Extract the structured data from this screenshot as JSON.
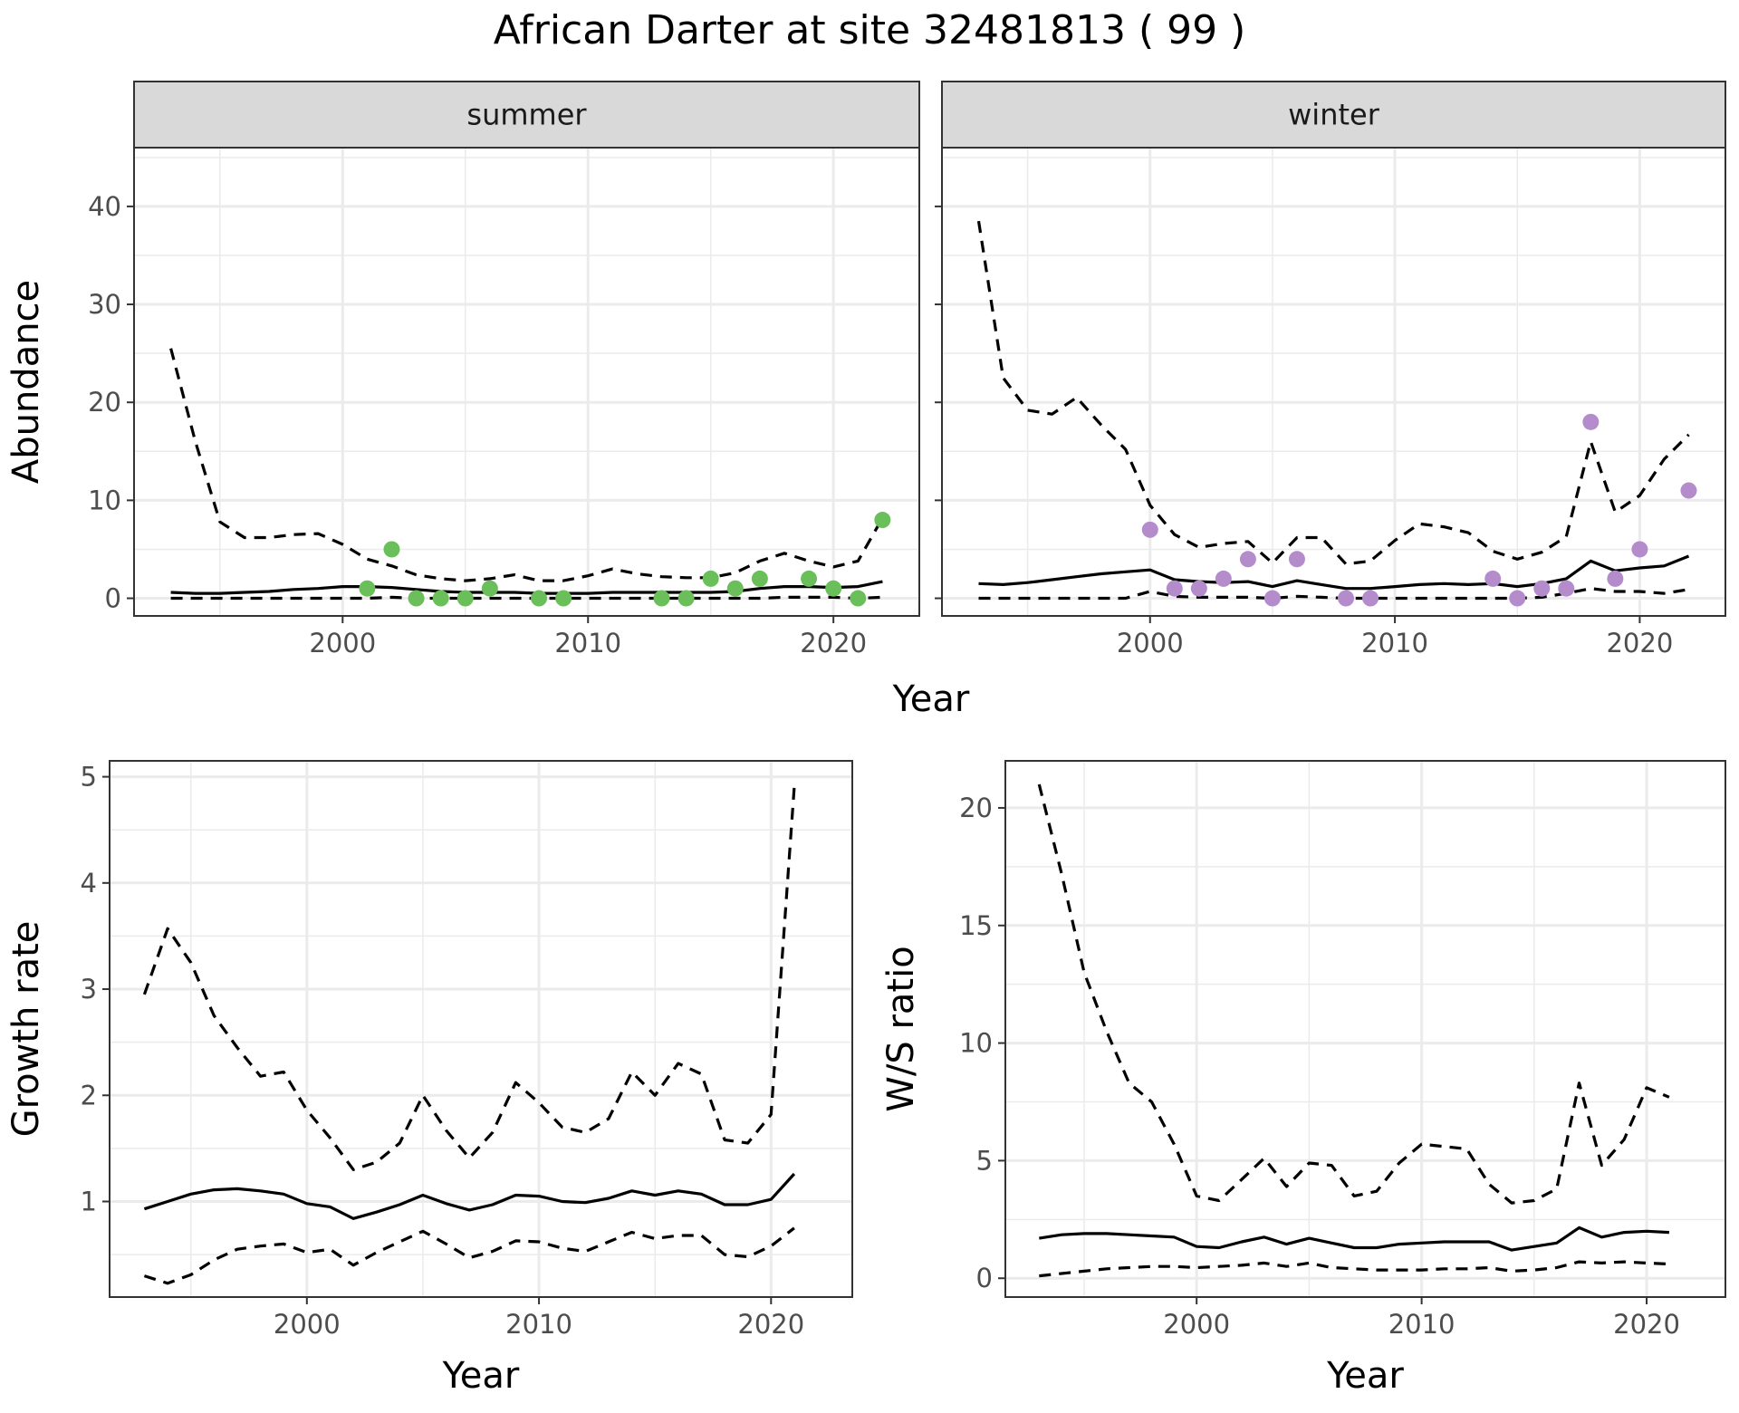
{
  "figure": {
    "title": "African Darter at site 32481813 ( 99 )"
  },
  "colors": {
    "summer_points": "#6abf5a",
    "winter_points": "#b48ccc",
    "line": "#000000",
    "grid": "#ebebeb",
    "strip_bg": "#d9d9d9"
  },
  "chart_data": [
    {
      "type": "line",
      "facet": "summer",
      "xlabel": "Year",
      "ylabel": "Abundance",
      "xlim": [
        1991.5,
        2023.5
      ],
      "ylim": [
        -1.8,
        46
      ],
      "xticks": [
        2000,
        2010,
        2020
      ],
      "yticks": [
        0,
        10,
        20,
        30,
        40
      ],
      "series": [
        {
          "role": "median",
          "style": "solid",
          "x": [
            1993,
            1994,
            1995,
            1996,
            1997,
            1998,
            1999,
            2000,
            2001,
            2002,
            2003,
            2004,
            2005,
            2006,
            2007,
            2008,
            2009,
            2010,
            2011,
            2012,
            2013,
            2014,
            2015,
            2016,
            2017,
            2018,
            2019,
            2020,
            2021,
            2022
          ],
          "y": [
            0.6,
            0.5,
            0.5,
            0.6,
            0.7,
            0.9,
            1.0,
            1.2,
            1.2,
            1.1,
            0.9,
            0.7,
            0.6,
            0.6,
            0.6,
            0.5,
            0.5,
            0.5,
            0.6,
            0.6,
            0.6,
            0.6,
            0.6,
            0.7,
            1.0,
            1.2,
            1.2,
            1.1,
            1.2,
            1.7
          ]
        },
        {
          "role": "upper",
          "style": "dashed",
          "x": [
            1993,
            1994,
            1995,
            1996,
            1997,
            1998,
            1999,
            2000,
            2001,
            2002,
            2003,
            2004,
            2005,
            2006,
            2007,
            2008,
            2009,
            2010,
            2011,
            2012,
            2013,
            2014,
            2015,
            2016,
            2017,
            2018,
            2019,
            2020,
            2021,
            2022
          ],
          "y": [
            25.5,
            16,
            7.8,
            6.2,
            6.2,
            6.5,
            6.6,
            5.5,
            4.0,
            3.3,
            2.4,
            2.0,
            1.8,
            2.0,
            2.4,
            1.8,
            1.8,
            2.3,
            3.0,
            2.5,
            2.2,
            2.1,
            2.1,
            2.6,
            3.8,
            4.6,
            3.8,
            3.2,
            3.8,
            8.2
          ]
        },
        {
          "role": "lower",
          "style": "dashed",
          "x": [
            1993,
            1994,
            1995,
            1996,
            1997,
            1998,
            1999,
            2000,
            2001,
            2002,
            2003,
            2004,
            2005,
            2006,
            2007,
            2008,
            2009,
            2010,
            2011,
            2012,
            2013,
            2014,
            2015,
            2016,
            2017,
            2018,
            2019,
            2020,
            2021,
            2022
          ],
          "y": [
            0,
            0,
            0,
            0,
            0,
            0,
            0,
            0,
            0,
            0.1,
            0,
            0,
            0,
            0,
            0,
            0,
            0,
            0,
            0,
            0,
            0,
            0,
            0,
            0,
            0,
            0.1,
            0.1,
            0.1,
            0,
            0.1
          ]
        }
      ],
      "points": {
        "x": [
          2001,
          2002,
          2003,
          2004,
          2005,
          2006,
          2008,
          2009,
          2013,
          2014,
          2015,
          2016,
          2017,
          2019,
          2020,
          2021,
          2022
        ],
        "y": [
          1,
          5,
          0,
          0,
          0,
          1,
          0,
          0,
          0,
          0,
          2,
          1,
          2,
          2,
          1,
          0,
          8
        ]
      }
    },
    {
      "type": "line",
      "facet": "winter",
      "xlabel": "Year",
      "ylabel": "",
      "xlim": [
        1991.5,
        2023.5
      ],
      "ylim": [
        -1.8,
        46
      ],
      "xticks": [
        2000,
        2010,
        2020
      ],
      "yticks": [
        0,
        10,
        20,
        30,
        40
      ],
      "series": [
        {
          "role": "median",
          "style": "solid",
          "x": [
            1993,
            1994,
            1995,
            1996,
            1997,
            1998,
            1999,
            2000,
            2001,
            2002,
            2003,
            2004,
            2005,
            2006,
            2007,
            2008,
            2009,
            2010,
            2011,
            2012,
            2013,
            2014,
            2015,
            2016,
            2017,
            2018,
            2019,
            2020,
            2021,
            2022
          ],
          "y": [
            1.5,
            1.4,
            1.6,
            1.9,
            2.2,
            2.5,
            2.7,
            2.9,
            1.9,
            1.7,
            1.6,
            1.7,
            1.2,
            1.8,
            1.4,
            1.0,
            1.0,
            1.2,
            1.4,
            1.5,
            1.4,
            1.5,
            1.2,
            1.5,
            2.0,
            3.8,
            2.8,
            3.1,
            3.3,
            4.3
          ]
        },
        {
          "role": "upper",
          "style": "dashed",
          "x": [
            1993,
            1994,
            1995,
            1996,
            1997,
            1998,
            1999,
            2000,
            2001,
            2002,
            2003,
            2004,
            2005,
            2006,
            2007,
            2008,
            2009,
            2010,
            2011,
            2012,
            2013,
            2014,
            2015,
            2016,
            2017,
            2018,
            2019,
            2020,
            2021,
            2022
          ],
          "y": [
            38.5,
            22.5,
            19.2,
            18.8,
            20.5,
            17.7,
            15.2,
            9.5,
            6.5,
            5.2,
            5.6,
            5.8,
            3.6,
            6.2,
            6.2,
            3.5,
            3.8,
            5.9,
            7.6,
            7.3,
            6.7,
            4.8,
            4.0,
            4.7,
            6.3,
            16.0,
            8.8,
            10.5,
            14.2,
            16.7
          ]
        },
        {
          "role": "lower",
          "style": "dashed",
          "x": [
            1993,
            1994,
            1995,
            1996,
            1997,
            1998,
            1999,
            2000,
            2001,
            2002,
            2003,
            2004,
            2005,
            2006,
            2007,
            2008,
            2009,
            2010,
            2011,
            2012,
            2013,
            2014,
            2015,
            2016,
            2017,
            2018,
            2019,
            2020,
            2021,
            2022
          ],
          "y": [
            0,
            0,
            0,
            0,
            0,
            0,
            0,
            0.7,
            0.2,
            0.1,
            0.1,
            0.1,
            0,
            0.2,
            0.1,
            0,
            0,
            0,
            0,
            0,
            0,
            0,
            0,
            0.1,
            0.5,
            1.0,
            0.7,
            0.7,
            0.5,
            0.9
          ]
        }
      ],
      "points": {
        "x": [
          2000,
          2001,
          2002,
          2003,
          2004,
          2005,
          2006,
          2008,
          2009,
          2014,
          2015,
          2016,
          2017,
          2018,
          2019,
          2020,
          2022
        ],
        "y": [
          7,
          1,
          1,
          2,
          4,
          0,
          4,
          0,
          0,
          2,
          0,
          1,
          1,
          18,
          2,
          5,
          11
        ]
      }
    },
    {
      "type": "line",
      "facet": "",
      "xlabel": "Year",
      "ylabel": "Growth rate",
      "xlim": [
        1991.5,
        2023.5
      ],
      "ylim": [
        0.1,
        5.15
      ],
      "xticks": [
        2000,
        2010,
        2020
      ],
      "yticks": [
        1,
        2,
        3,
        4,
        5
      ],
      "series": [
        {
          "role": "median",
          "style": "solid",
          "x": [
            1993,
            1994,
            1995,
            1996,
            1997,
            1998,
            1999,
            2000,
            2001,
            2002,
            2003,
            2004,
            2005,
            2006,
            2007,
            2008,
            2009,
            2010,
            2011,
            2012,
            2013,
            2014,
            2015,
            2016,
            2017,
            2018,
            2019,
            2020,
            2021
          ],
          "y": [
            0.93,
            1.0,
            1.07,
            1.11,
            1.12,
            1.1,
            1.07,
            0.98,
            0.95,
            0.84,
            0.9,
            0.97,
            1.06,
            0.98,
            0.92,
            0.97,
            1.06,
            1.05,
            1.0,
            0.99,
            1.03,
            1.1,
            1.06,
            1.1,
            1.07,
            0.97,
            0.97,
            1.02,
            1.26
          ]
        },
        {
          "role": "upper",
          "style": "dashed",
          "x": [
            1993,
            1994,
            1995,
            1996,
            1997,
            1998,
            1999,
            2000,
            2001,
            2002,
            2003,
            2004,
            2005,
            2006,
            2007,
            2008,
            2009,
            2010,
            2011,
            2012,
            2013,
            2014,
            2015,
            2016,
            2017,
            2018,
            2019,
            2020,
            2021
          ],
          "y": [
            2.95,
            3.57,
            3.25,
            2.75,
            2.45,
            2.18,
            2.22,
            1.86,
            1.6,
            1.3,
            1.37,
            1.55,
            2.0,
            1.67,
            1.41,
            1.65,
            2.12,
            1.93,
            1.7,
            1.65,
            1.78,
            2.22,
            2.0,
            2.3,
            2.2,
            1.58,
            1.55,
            1.82,
            4.9
          ]
        },
        {
          "role": "lower",
          "style": "dashed",
          "x": [
            1993,
            1994,
            1995,
            1996,
            1997,
            1998,
            1999,
            2000,
            2001,
            2002,
            2003,
            2004,
            2005,
            2006,
            2007,
            2008,
            2009,
            2010,
            2011,
            2012,
            2013,
            2014,
            2015,
            2016,
            2017,
            2018,
            2019,
            2020,
            2021
          ],
          "y": [
            0.3,
            0.23,
            0.31,
            0.45,
            0.55,
            0.58,
            0.6,
            0.52,
            0.55,
            0.4,
            0.52,
            0.62,
            0.72,
            0.6,
            0.47,
            0.53,
            0.63,
            0.62,
            0.56,
            0.53,
            0.62,
            0.71,
            0.65,
            0.68,
            0.68,
            0.5,
            0.48,
            0.58,
            0.75
          ]
        }
      ]
    },
    {
      "type": "line",
      "facet": "",
      "xlabel": "Year",
      "ylabel": "W/S ratio",
      "xlim": [
        1991.5,
        2023.5
      ],
      "ylim": [
        -0.8,
        22.0
      ],
      "xticks": [
        2000,
        2010,
        2020
      ],
      "yticks": [
        0,
        5,
        10,
        15,
        20
      ],
      "series": [
        {
          "role": "median",
          "style": "solid",
          "x": [
            1993,
            1994,
            1995,
            1996,
            1997,
            1998,
            1999,
            2000,
            2001,
            2002,
            2003,
            2004,
            2005,
            2006,
            2007,
            2008,
            2009,
            2010,
            2011,
            2012,
            2013,
            2014,
            2015,
            2016,
            2017,
            2018,
            2019,
            2020,
            2021
          ],
          "y": [
            1.7,
            1.85,
            1.9,
            1.9,
            1.85,
            1.8,
            1.75,
            1.35,
            1.3,
            1.55,
            1.75,
            1.45,
            1.7,
            1.5,
            1.3,
            1.3,
            1.45,
            1.5,
            1.55,
            1.55,
            1.55,
            1.2,
            1.35,
            1.5,
            2.15,
            1.75,
            1.95,
            2.0,
            1.95
          ]
        },
        {
          "role": "upper",
          "style": "dashed",
          "x": [
            1993,
            1994,
            1995,
            1996,
            1997,
            1998,
            1999,
            2000,
            2001,
            2002,
            2003,
            2004,
            2005,
            2006,
            2007,
            2008,
            2009,
            2010,
            2011,
            2012,
            2013,
            2014,
            2015,
            2016,
            2017,
            2018,
            2019,
            2020,
            2021
          ],
          "y": [
            21.0,
            17.2,
            13.0,
            10.5,
            8.3,
            7.5,
            5.7,
            3.5,
            3.3,
            4.2,
            5.1,
            3.9,
            4.9,
            4.8,
            3.5,
            3.7,
            4.9,
            5.7,
            5.6,
            5.5,
            4.0,
            3.2,
            3.3,
            3.8,
            8.3,
            4.8,
            5.9,
            8.1,
            7.7
          ]
        },
        {
          "role": "lower",
          "style": "dashed",
          "x": [
            1993,
            1994,
            1995,
            1996,
            1997,
            1998,
            1999,
            2000,
            2001,
            2002,
            2003,
            2004,
            2005,
            2006,
            2007,
            2008,
            2009,
            2010,
            2011,
            2012,
            2013,
            2014,
            2015,
            2016,
            2017,
            2018,
            2019,
            2020,
            2021
          ],
          "y": [
            0.1,
            0.2,
            0.3,
            0.4,
            0.45,
            0.5,
            0.5,
            0.45,
            0.5,
            0.55,
            0.65,
            0.5,
            0.65,
            0.45,
            0.4,
            0.35,
            0.35,
            0.35,
            0.4,
            0.4,
            0.45,
            0.3,
            0.35,
            0.45,
            0.7,
            0.65,
            0.7,
            0.65,
            0.6
          ]
        }
      ]
    }
  ]
}
